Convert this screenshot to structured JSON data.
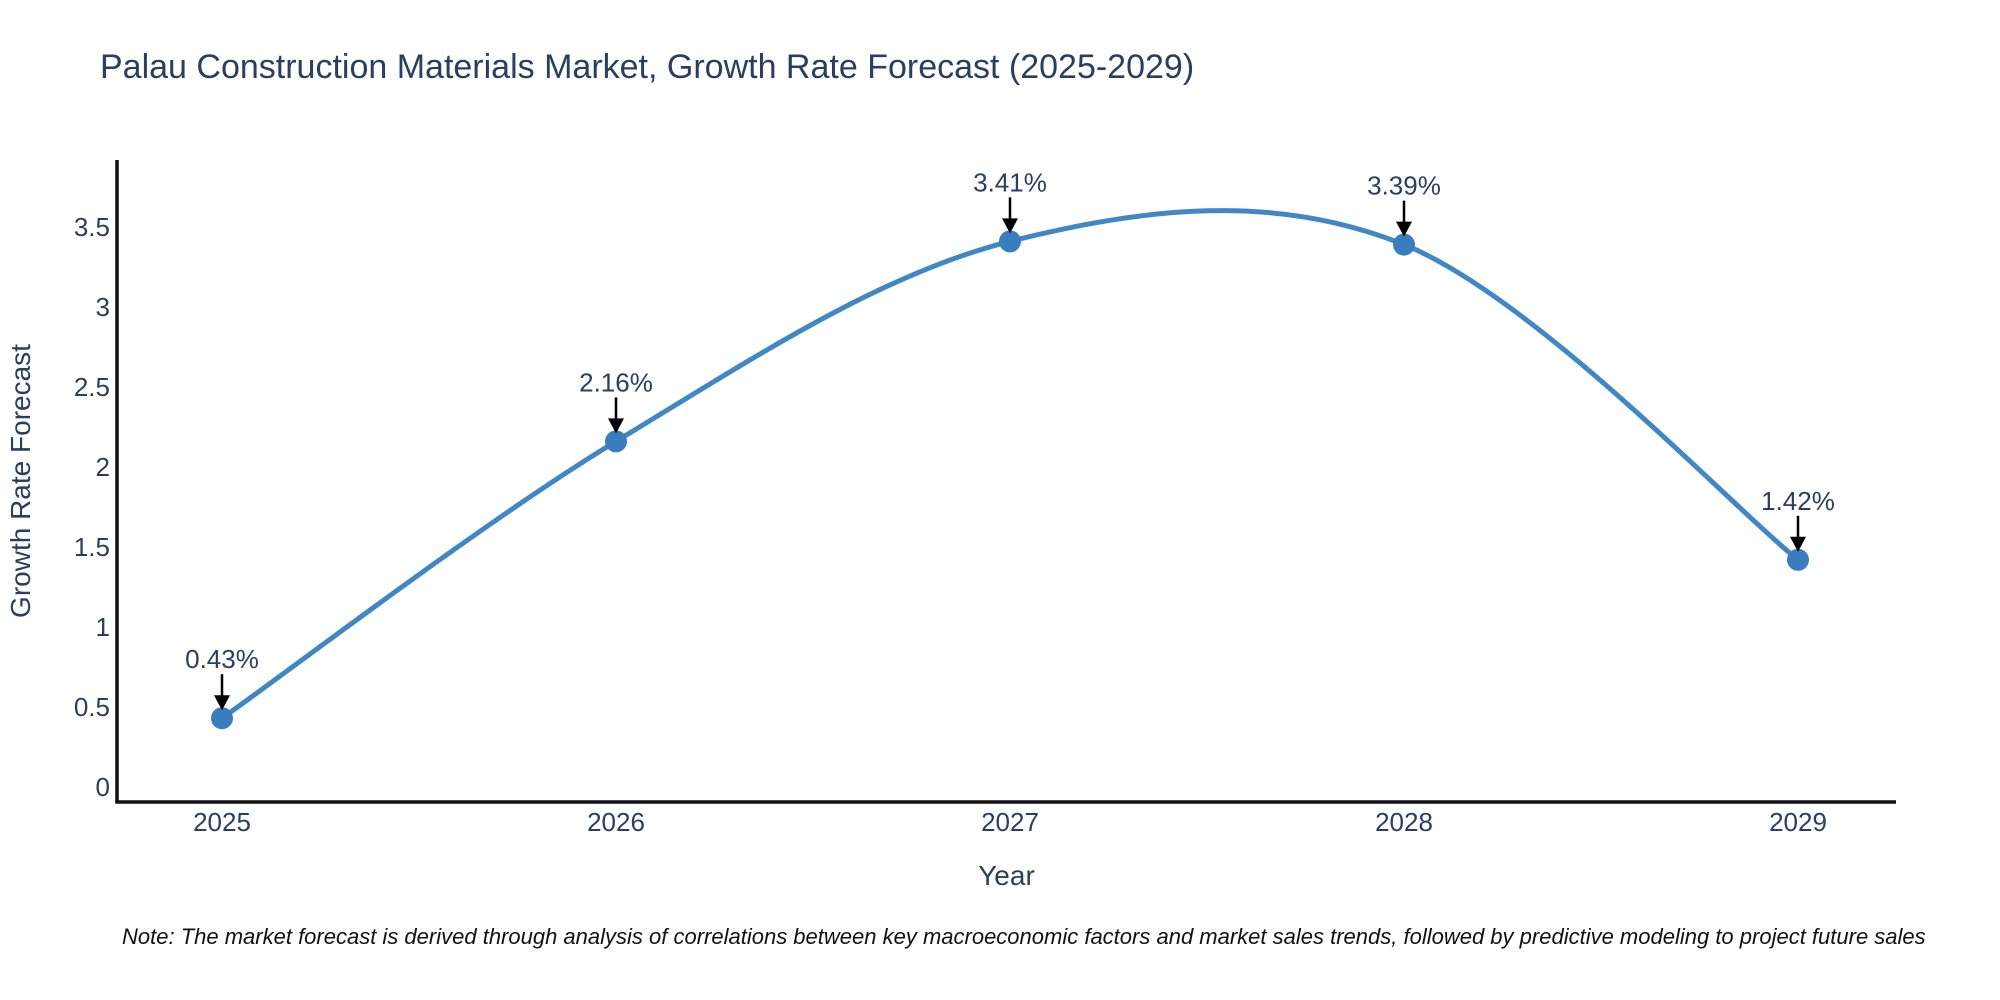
{
  "title": "Palau Construction Materials Market, Growth Rate Forecast (2025-2029)",
  "note": "Note: The market forecast is derived through analysis of correlations between key macroeconomic factors and market sales trends, followed by predictive modeling to project future sales",
  "chart_data": {
    "type": "line",
    "line_shape": "spline",
    "title": "Palau Construction Materials Market, Growth Rate Forecast (2025-2029)",
    "categories": [
      "2025",
      "2026",
      "2027",
      "2028",
      "2029"
    ],
    "series": [
      {
        "name": "Growth Rate Forecast",
        "values": [
          0.43,
          2.16,
          3.41,
          3.39,
          1.42
        ]
      }
    ],
    "point_labels": [
      "0.43%",
      "2.16%",
      "3.41%",
      "3.39%",
      "1.42%"
    ],
    "xlabel": "Year",
    "ylabel": "Growth Rate Forecast",
    "yticks": [
      0,
      0.5,
      1,
      1.5,
      2,
      2.5,
      3,
      3.5
    ],
    "ylim": [
      -0.09,
      3.93
    ],
    "grid": false,
    "legend": "none",
    "annotations": "black down-arrows from each value label to its data point",
    "colors": {
      "line": "#4187c4",
      "marker": "#3a7dbf",
      "text": "#2a3f5f",
      "note_text": "#111111",
      "axis": "#111111",
      "arrow": "#000000",
      "background": "#ffffff"
    }
  }
}
